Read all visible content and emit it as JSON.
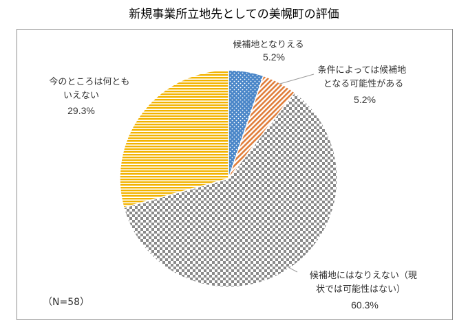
{
  "title": "新規事業所立地先としての美幌町の評価",
  "sample_note": "（N=58）",
  "chart_data": {
    "type": "pie",
    "title": "新規事業所立地先としての美幌町の評価",
    "slices": [
      {
        "label_lines": [
          "候補地となりえる"
        ],
        "value": 5.2,
        "value_label": "5.2%",
        "color": "#4a86c8",
        "pattern": "dots"
      },
      {
        "label_lines": [
          "条件によっては候補地",
          "となる可能性がある"
        ],
        "value": 5.2,
        "value_label": "5.2%",
        "color": "#e07d3a",
        "pattern": "diagonal-stripes"
      },
      {
        "label_lines": [
          "候補地にはなりえない（現",
          "状では可能性はない）"
        ],
        "value": 60.3,
        "value_label": "60.3%",
        "color": "#8a8a8a",
        "pattern": "checker"
      },
      {
        "label_lines": [
          "今のところは何とも",
          "いえない"
        ],
        "value": 29.3,
        "value_label": "29.3%",
        "color": "#f2b300",
        "pattern": "horizontal-stripes"
      }
    ]
  }
}
